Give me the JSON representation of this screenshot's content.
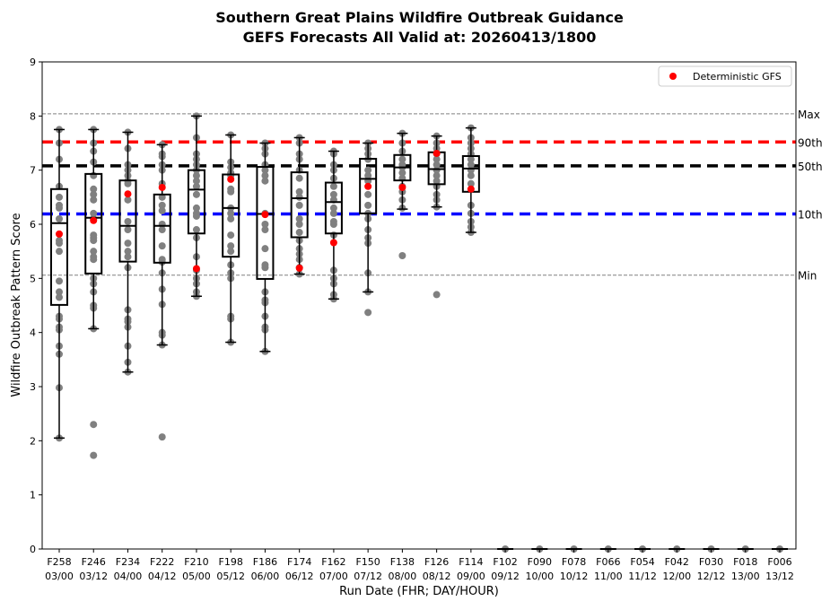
{
  "chart_data": {
    "type": "box",
    "title": "Southern Great Plains Wildfire Outbreak Guidance",
    "subtitle": "GEFS Forecasts All Valid at: 20260413/1800",
    "xlabel": "Run Date (FHR; DAY/HOUR)",
    "ylabel": "Wildfire Outbreak Pattern Score",
    "ylim": [
      0,
      9
    ],
    "yticks": [
      "0",
      "1",
      "2",
      "3",
      "4",
      "5",
      "6",
      "7",
      "8",
      "9"
    ],
    "legend": {
      "label": "Deterministic GFS",
      "placement": "top-right",
      "color": "#ff0000"
    },
    "reference_lines": [
      {
        "label": "Max",
        "value": 8.04,
        "color": "#808080",
        "style": "thin-dashed"
      },
      {
        "label": "90th",
        "value": 7.52,
        "color": "#ff0000",
        "style": "thick-dashed"
      },
      {
        "label": "50th",
        "value": 7.08,
        "color": "#000000",
        "style": "thick-dashed"
      },
      {
        "label": "10th",
        "value": 6.19,
        "color": "#0000ff",
        "style": "thick-dashed"
      },
      {
        "label": "Min",
        "value": 5.06,
        "color": "#808080",
        "style": "thin-dashed"
      }
    ],
    "member_color": "#808080",
    "runs": [
      {
        "fhr": "F258",
        "date": "03/00",
        "whislo": 2.05,
        "q1": 4.51,
        "med": 6.02,
        "q3": 6.65,
        "whishi": 7.75,
        "det": 5.82,
        "members": [
          7.75,
          7.5,
          7.2,
          6.7,
          6.5,
          6.35,
          6.3,
          6.1,
          5.7,
          5.65,
          5.5,
          4.95,
          4.75,
          4.65,
          4.3,
          4.25,
          4.1,
          4.05,
          3.75,
          3.6,
          2.98,
          2.05
        ]
      },
      {
        "fhr": "F246",
        "date": "03/12",
        "whislo": 4.07,
        "q1": 5.09,
        "med": 6.12,
        "q3": 6.93,
        "whishi": 7.75,
        "det": 6.07,
        "members": [
          7.75,
          7.5,
          7.35,
          7.15,
          6.9,
          6.65,
          6.55,
          6.45,
          6.2,
          6.1,
          5.8,
          5.75,
          5.7,
          5.5,
          5.4,
          5.35,
          5.0,
          4.9,
          4.75,
          4.5,
          4.45,
          4.07,
          2.3,
          1.73
        ]
      },
      {
        "fhr": "F234",
        "date": "04/00",
        "whislo": 3.27,
        "q1": 5.31,
        "med": 5.97,
        "q3": 6.81,
        "whishi": 7.7,
        "det": 6.56,
        "members": [
          7.7,
          7.4,
          7.1,
          7.0,
          6.9,
          6.8,
          6.75,
          6.45,
          6.05,
          5.9,
          5.65,
          5.5,
          5.4,
          5.2,
          4.42,
          4.25,
          4.2,
          4.1,
          3.75,
          3.45,
          3.27
        ]
      },
      {
        "fhr": "F222",
        "date": "04/12",
        "whislo": 3.77,
        "q1": 5.29,
        "med": 5.97,
        "q3": 6.55,
        "whishi": 7.47,
        "det": 6.68,
        "members": [
          7.47,
          7.3,
          7.25,
          7.1,
          7.0,
          6.75,
          6.5,
          6.35,
          6.25,
          6.0,
          5.9,
          5.6,
          5.35,
          5.3,
          5.1,
          4.8,
          4.52,
          4.0,
          3.95,
          3.77,
          2.07
        ]
      },
      {
        "fhr": "F210",
        "date": "05/00",
        "whislo": 4.67,
        "q1": 5.83,
        "med": 6.64,
        "q3": 7.0,
        "whishi": 8.0,
        "det": 5.18,
        "members": [
          8.0,
          7.6,
          7.3,
          7.2,
          7.1,
          7.0,
          6.9,
          6.8,
          6.7,
          6.55,
          6.3,
          6.2,
          6.15,
          5.9,
          5.75,
          5.4,
          5.15,
          5.0,
          4.9,
          4.75,
          4.67
        ]
      },
      {
        "fhr": "F198",
        "date": "05/12",
        "whislo": 3.82,
        "q1": 5.4,
        "med": 6.3,
        "q3": 6.92,
        "whishi": 7.65,
        "det": 6.83,
        "members": [
          7.65,
          7.15,
          7.05,
          6.95,
          6.9,
          6.65,
          6.6,
          6.3,
          6.2,
          6.1,
          5.8,
          5.6,
          5.5,
          5.25,
          5.1,
          5.0,
          4.3,
          4.25,
          3.82
        ]
      },
      {
        "fhr": "F186",
        "date": "06/00",
        "whislo": 3.65,
        "q1": 4.99,
        "med": 6.19,
        "q3": 7.06,
        "whishi": 7.5,
        "det": 6.18,
        "members": [
          7.5,
          7.4,
          7.3,
          7.1,
          7.0,
          6.9,
          6.8,
          6.2,
          6.0,
          5.9,
          5.55,
          5.25,
          5.2,
          4.75,
          4.6,
          4.55,
          4.3,
          4.1,
          4.05,
          3.65
        ]
      },
      {
        "fhr": "F174",
        "date": "06/12",
        "whislo": 5.08,
        "q1": 5.76,
        "med": 6.48,
        "q3": 6.96,
        "whishi": 7.6,
        "det": 5.19,
        "members": [
          7.6,
          7.5,
          7.3,
          7.2,
          7.0,
          6.85,
          6.6,
          6.5,
          6.35,
          6.1,
          6.0,
          5.85,
          5.7,
          5.55,
          5.45,
          5.35,
          5.2,
          5.08
        ]
      },
      {
        "fhr": "F162",
        "date": "07/00",
        "whislo": 4.62,
        "q1": 5.83,
        "med": 6.41,
        "q3": 6.77,
        "whishi": 7.35,
        "det": 5.66,
        "members": [
          7.35,
          7.3,
          7.1,
          7.0,
          6.85,
          6.7,
          6.55,
          6.45,
          6.3,
          6.2,
          6.05,
          6.0,
          5.8,
          5.15,
          5.0,
          4.9,
          4.7,
          4.62
        ]
      },
      {
        "fhr": "F150",
        "date": "07/12",
        "whislo": 4.75,
        "q1": 6.2,
        "med": 6.84,
        "q3": 7.21,
        "whishi": 7.5,
        "det": 6.7,
        "members": [
          7.5,
          7.4,
          7.3,
          7.2,
          7.0,
          6.9,
          6.8,
          6.55,
          6.35,
          6.2,
          6.1,
          5.9,
          5.75,
          5.65,
          5.1,
          4.75,
          4.37
        ]
      },
      {
        "fhr": "F138",
        "date": "08/00",
        "whislo": 6.28,
        "q1": 6.81,
        "med": 7.05,
        "q3": 7.28,
        "whishi": 7.68,
        "det": 6.68,
        "members": [
          7.68,
          7.5,
          7.35,
          7.2,
          7.1,
          7.05,
          6.95,
          6.85,
          6.7,
          6.6,
          6.45,
          6.3,
          5.42
        ]
      },
      {
        "fhr": "F126",
        "date": "08/12",
        "whislo": 6.32,
        "q1": 6.74,
        "med": 7.02,
        "q3": 7.33,
        "whishi": 7.63,
        "det": 7.31,
        "members": [
          7.63,
          7.5,
          7.4,
          7.3,
          7.2,
          7.1,
          7.0,
          6.9,
          6.8,
          6.7,
          6.55,
          6.45,
          6.32,
          4.7
        ]
      },
      {
        "fhr": "F114",
        "date": "09/00",
        "whislo": 5.85,
        "q1": 6.6,
        "med": 7.03,
        "q3": 7.26,
        "whishi": 7.78,
        "det": 6.65,
        "members": [
          7.78,
          7.6,
          7.5,
          7.4,
          7.3,
          7.2,
          7.1,
          7.0,
          6.9,
          6.75,
          6.35,
          6.2,
          6.05,
          5.95,
          5.85
        ]
      },
      {
        "fhr": "F102",
        "date": "09/12",
        "whislo": 0,
        "q1": 0,
        "med": 0,
        "q3": 0,
        "whishi": 0,
        "det": null,
        "members": [
          0
        ]
      },
      {
        "fhr": "F090",
        "date": "10/00",
        "whislo": 0,
        "q1": 0,
        "med": 0,
        "q3": 0,
        "whishi": 0,
        "det": null,
        "members": [
          0
        ]
      },
      {
        "fhr": "F078",
        "date": "10/12",
        "whislo": 0,
        "q1": 0,
        "med": 0,
        "q3": 0,
        "whishi": 0,
        "det": null,
        "members": [
          0
        ]
      },
      {
        "fhr": "F066",
        "date": "11/00",
        "whislo": 0,
        "q1": 0,
        "med": 0,
        "q3": 0,
        "whishi": 0,
        "det": null,
        "members": [
          0
        ]
      },
      {
        "fhr": "F054",
        "date": "11/12",
        "whislo": 0,
        "q1": 0,
        "med": 0,
        "q3": 0,
        "whishi": 0,
        "det": null,
        "members": [
          0
        ]
      },
      {
        "fhr": "F042",
        "date": "12/00",
        "whislo": 0,
        "q1": 0,
        "med": 0,
        "q3": 0,
        "whishi": 0,
        "det": null,
        "members": [
          0
        ]
      },
      {
        "fhr": "F030",
        "date": "12/12",
        "whislo": 0,
        "q1": 0,
        "med": 0,
        "q3": 0,
        "whishi": 0,
        "det": null,
        "members": [
          0
        ]
      },
      {
        "fhr": "F018",
        "date": "13/00",
        "whislo": 0,
        "q1": 0,
        "med": 0,
        "q3": 0,
        "whishi": 0,
        "det": null,
        "members": [
          0
        ]
      },
      {
        "fhr": "F006",
        "date": "13/12",
        "whislo": 0,
        "q1": 0,
        "med": 0,
        "q3": 0,
        "whishi": 0,
        "det": null,
        "members": [
          0
        ]
      }
    ]
  }
}
